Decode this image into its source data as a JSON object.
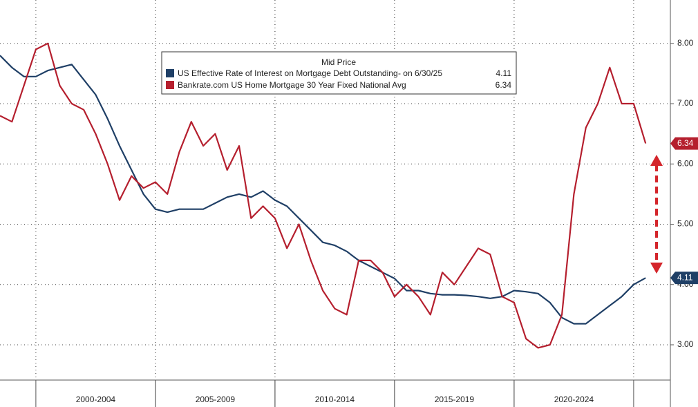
{
  "chart_data": {
    "type": "line",
    "legend_title": "Mid Price",
    "categories": [
      null,
      null,
      null,
      null,
      null,
      null,
      null,
      null,
      "2000-2004",
      null,
      null,
      null,
      null,
      null,
      null,
      null,
      null,
      null,
      "2005-2009",
      null,
      null,
      null,
      null,
      null,
      null,
      null,
      null,
      null,
      "2010-2014",
      null,
      null,
      null,
      null,
      null,
      null,
      null,
      null,
      null,
      "2015-2019",
      null,
      null,
      null,
      null,
      null,
      null,
      null,
      null,
      null,
      "2020-2024",
      null,
      null,
      null,
      null,
      null,
      null
    ],
    "series": [
      {
        "name": "US Effective Rate of Interest on Mortgage Debt Outstanding",
        "legend_note": "-  on 6/30/25",
        "color": "#1f3f66",
        "values": [
          7.8,
          7.6,
          7.45,
          7.45,
          7.55,
          7.6,
          7.65,
          7.4,
          7.15,
          6.75,
          6.3,
          5.9,
          5.5,
          5.25,
          5.2,
          5.25,
          5.25,
          5.25,
          5.35,
          5.45,
          5.5,
          5.45,
          5.55,
          5.4,
          5.3,
          5.1,
          4.9,
          4.7,
          4.65,
          4.55,
          4.4,
          4.3,
          4.2,
          4.1,
          3.9,
          3.9,
          3.85,
          3.83,
          3.83,
          3.82,
          3.8,
          3.77,
          3.8,
          3.9,
          3.88,
          3.85,
          3.7,
          3.45,
          3.35,
          3.35,
          3.5,
          3.65,
          3.8,
          4.0,
          4.11
        ]
      },
      {
        "name": "Bankrate.com US Home Mortgage 30 Year Fixed National Avg",
        "color": "#b51f2e",
        "values": [
          6.8,
          6.7,
          7.3,
          7.9,
          8.0,
          7.3,
          7.0,
          6.9,
          6.5,
          6.0,
          5.4,
          5.8,
          5.6,
          5.7,
          5.5,
          6.2,
          6.7,
          6.3,
          6.5,
          5.9,
          6.3,
          5.1,
          5.3,
          5.1,
          4.6,
          5.0,
          4.4,
          3.9,
          3.6,
          3.5,
          4.4,
          4.4,
          4.2,
          3.8,
          4.0,
          3.8,
          3.5,
          4.2,
          4.0,
          4.3,
          4.6,
          4.5,
          3.8,
          3.7,
          3.1,
          2.95,
          3.0,
          3.5,
          5.5,
          6.6,
          7.0,
          7.6,
          7.0,
          7.0,
          6.34
        ]
      }
    ],
    "ylim": [
      2.53,
      8.72
    ],
    "yticks": [
      {
        "value": 3,
        "label": "3.00"
      },
      {
        "value": 4,
        "label": "4.00"
      },
      {
        "value": 5,
        "label": "5.00"
      },
      {
        "value": 6,
        "label": "6.00"
      },
      {
        "value": 7,
        "label": "7.00"
      },
      {
        "value": 8,
        "label": "8.00"
      }
    ],
    "grid": true
  }
}
